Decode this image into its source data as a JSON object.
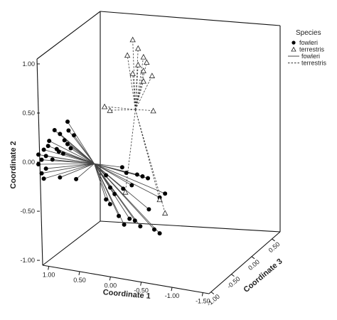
{
  "chart_data": {
    "type": "scatter",
    "projection": "3d",
    "xlabel": "Coordinate 1",
    "ylabel": "Coordinate 2",
    "zlabel": "Coordinate 3",
    "x_ticks": [
      "1.00",
      "0.50",
      "0.00",
      "-0.50",
      "-1.00",
      "-1.50"
    ],
    "y_ticks": [
      "1.00",
      "0.50",
      "0.00",
      "-0.50",
      "-1.00"
    ],
    "z_ticks": [
      "-1.00",
      "-0.50",
      "0.00",
      "0.50"
    ],
    "xlim": [
      1.1,
      -1.6
    ],
    "ylim": [
      -1.05,
      1.05
    ],
    "zlim": [
      -1.05,
      0.7
    ],
    "legend": {
      "title": "Species",
      "placement": "right",
      "items": [
        {
          "label": "fowleri",
          "kind": "marker",
          "marker": "filled-circle"
        },
        {
          "label": "terrestris",
          "kind": "marker",
          "marker": "open-triangle"
        },
        {
          "label": "fowleri",
          "kind": "line",
          "dash": "solid"
        },
        {
          "label": "terrestris",
          "kind": "line",
          "dash": "dashed"
        }
      ]
    },
    "series": [
      {
        "name": "fowleri",
        "marker": "filled-circle",
        "line": "solid",
        "centroid": {
          "x": -0.05,
          "y": 0.12,
          "z": -0.45
        },
        "points": [
          {
            "x": 0.3,
            "y": 0.55,
            "z": -0.55
          },
          {
            "x": 0.25,
            "y": 0.48,
            "z": -0.6
          },
          {
            "x": 0.4,
            "y": 0.5,
            "z": -0.7
          },
          {
            "x": 0.35,
            "y": 0.45,
            "z": -0.65
          },
          {
            "x": 0.2,
            "y": 0.42,
            "z": -0.55
          },
          {
            "x": 0.45,
            "y": 0.4,
            "z": -0.75
          },
          {
            "x": 0.3,
            "y": 0.38,
            "z": -0.62
          },
          {
            "x": 0.5,
            "y": 0.32,
            "z": -0.8
          },
          {
            "x": 0.55,
            "y": 0.28,
            "z": -0.85
          },
          {
            "x": 0.48,
            "y": 0.25,
            "z": -0.78
          },
          {
            "x": 0.52,
            "y": 0.22,
            "z": -0.82
          },
          {
            "x": 0.42,
            "y": 0.2,
            "z": -0.72
          },
          {
            "x": 0.38,
            "y": 0.3,
            "z": -0.68
          },
          {
            "x": 0.46,
            "y": 0.35,
            "z": -0.76
          },
          {
            "x": 0.55,
            "y": 0.18,
            "z": -0.85
          },
          {
            "x": 0.48,
            "y": 0.12,
            "z": -0.78
          },
          {
            "x": 0.52,
            "y": 0.08,
            "z": -0.82
          },
          {
            "x": 0.5,
            "y": 0.02,
            "z": -0.8
          },
          {
            "x": 0.35,
            "y": 0.0,
            "z": -0.65
          },
          {
            "x": 0.2,
            "y": -0.05,
            "z": -0.5
          },
          {
            "x": 0.25,
            "y": 0.28,
            "z": -0.55
          },
          {
            "x": 0.28,
            "y": 0.33,
            "z": -0.58
          },
          {
            "x": 0.32,
            "y": 0.24,
            "z": -0.62
          },
          {
            "x": 0.36,
            "y": 0.27,
            "z": -0.66
          },
          {
            "x": -0.35,
            "y": 0.05,
            "z": -0.25
          },
          {
            "x": -0.45,
            "y": 0.02,
            "z": -0.3
          },
          {
            "x": -0.55,
            "y": -0.02,
            "z": -0.2
          },
          {
            "x": -0.6,
            "y": -0.05,
            "z": -0.15
          },
          {
            "x": -0.65,
            "y": -0.08,
            "z": -0.1
          },
          {
            "x": -0.5,
            "y": -0.12,
            "z": -0.25
          },
          {
            "x": -0.4,
            "y": -0.15,
            "z": -0.3
          },
          {
            "x": -0.3,
            "y": -0.2,
            "z": -0.35
          },
          {
            "x": -0.2,
            "y": -0.25,
            "z": -0.4
          },
          {
            "x": -0.25,
            "y": -0.3,
            "z": -0.38
          },
          {
            "x": -0.8,
            "y": -0.28,
            "z": -0.05
          },
          {
            "x": -0.85,
            "y": -0.25,
            "z": 0.0
          },
          {
            "x": -0.5,
            "y": -0.45,
            "z": -0.3
          },
          {
            "x": -0.45,
            "y": -0.5,
            "z": -0.35
          },
          {
            "x": -0.55,
            "y": -0.48,
            "z": -0.25
          },
          {
            "x": -0.6,
            "y": -0.55,
            "z": -0.2
          },
          {
            "x": -0.75,
            "y": -0.6,
            "z": -0.1
          },
          {
            "x": -0.8,
            "y": -0.65,
            "z": -0.05
          },
          {
            "x": -0.4,
            "y": -0.4,
            "z": -0.4
          },
          {
            "x": -0.7,
            "y": -0.38,
            "z": -0.15
          },
          {
            "x": -0.3,
            "y": -0.1,
            "z": -0.45
          },
          {
            "x": -0.2,
            "y": 0.0,
            "z": -0.4
          }
        ]
      },
      {
        "name": "terrestris",
        "marker": "open-triangle",
        "line": "dashed",
        "centroid": {
          "x": -0.35,
          "y": 0.55,
          "z": 0.05
        },
        "points": [
          {
            "x": -0.1,
            "y": 1.15,
            "z": 0.35
          },
          {
            "x": -0.15,
            "y": 1.05,
            "z": 0.4
          },
          {
            "x": -0.05,
            "y": 1.0,
            "z": 0.3
          },
          {
            "x": -0.2,
            "y": 0.95,
            "z": 0.45
          },
          {
            "x": -0.25,
            "y": 0.9,
            "z": 0.45
          },
          {
            "x": -0.15,
            "y": 0.88,
            "z": 0.4
          },
          {
            "x": -0.22,
            "y": 0.82,
            "z": 0.42
          },
          {
            "x": -0.1,
            "y": 0.8,
            "z": 0.35
          },
          {
            "x": -0.3,
            "y": 0.75,
            "z": 0.5
          },
          {
            "x": -0.2,
            "y": 0.7,
            "z": 0.45
          },
          {
            "x": -0.25,
            "y": 0.35,
            "z": 0.6
          },
          {
            "x": 0.1,
            "y": 0.55,
            "z": 0.0
          },
          {
            "x": 0.05,
            "y": 0.5,
            "z": 0.05
          },
          {
            "x": -0.4,
            "y": -0.2,
            "z": -0.25
          },
          {
            "x": -0.8,
            "y": -0.3,
            "z": -0.05
          },
          {
            "x": -0.85,
            "y": -0.45,
            "z": 0.0
          }
        ]
      }
    ]
  }
}
